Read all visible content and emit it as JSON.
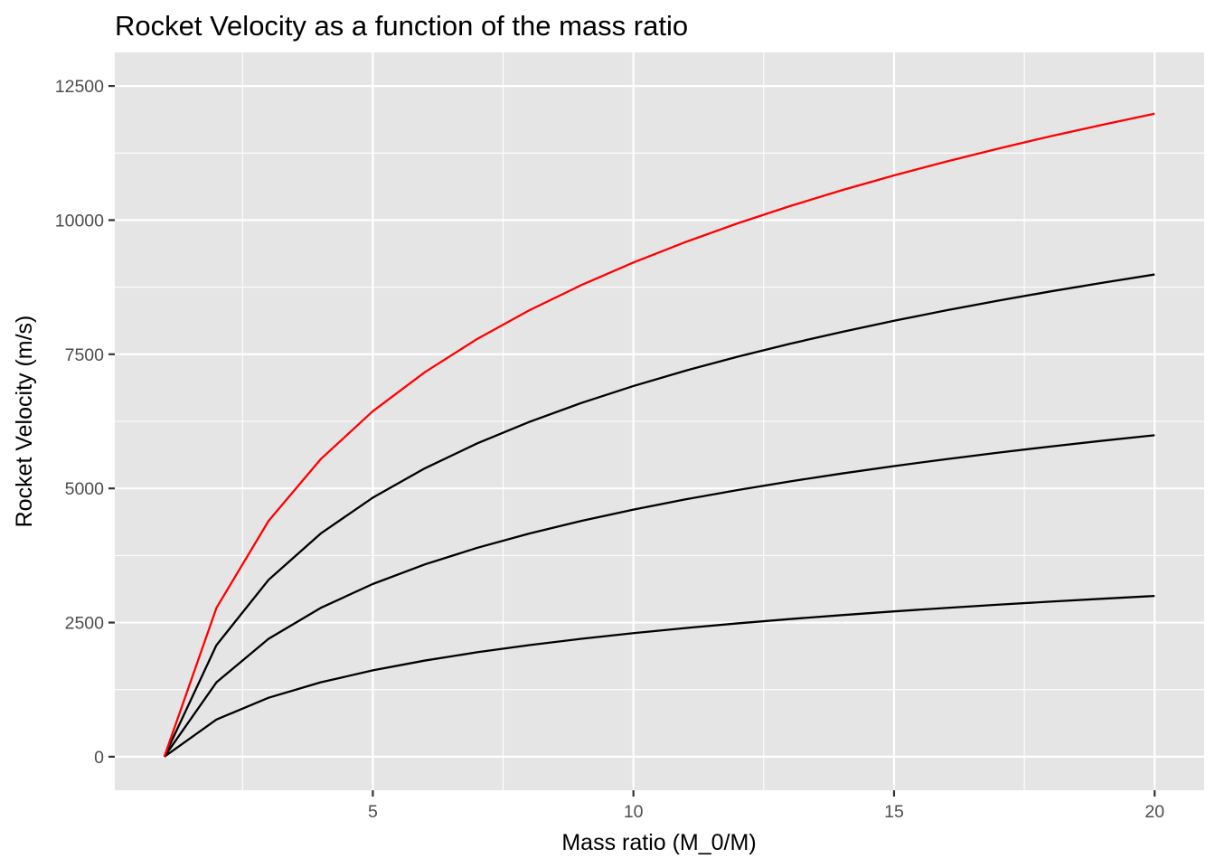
{
  "chart_data": {
    "type": "line",
    "title": "Rocket Velocity as a function of the mass ratio",
    "xlabel": "Mass ratio (M_0/M)",
    "ylabel": "Rocket Velocity (m/s)",
    "xlim": [
      0.05,
      20.95
    ],
    "ylim": [
      -625,
      13125
    ],
    "x_ticks": [
      5,
      10,
      15,
      20
    ],
    "x_tick_labels": [
      "5",
      "10",
      "15",
      "20"
    ],
    "y_ticks": [
      0,
      2500,
      5000,
      7500,
      10000,
      12500
    ],
    "y_tick_labels": [
      "0",
      "2500",
      "5000",
      "7500",
      "10000",
      "12500"
    ],
    "x_minor_ticks": [
      2.5,
      7.5,
      12.5,
      17.5
    ],
    "y_minor_ticks": [
      1250,
      3750,
      6250,
      8750,
      11250
    ],
    "grid": true,
    "legend": "none",
    "x": [
      1,
      2,
      3,
      4,
      5,
      6,
      7,
      8,
      9,
      10,
      11,
      12,
      13,
      14,
      15,
      16,
      17,
      18,
      19,
      20
    ],
    "series": [
      {
        "color": "#000000",
        "values": [
          0,
          693,
          1099,
          1386,
          1609,
          1792,
          1946,
          2079,
          2197,
          2303,
          2398,
          2485,
          2565,
          2639,
          2708,
          2773,
          2833,
          2890,
          2944,
          2996
        ]
      },
      {
        "color": "#000000",
        "values": [
          0,
          1386,
          2197,
          2773,
          3219,
          3584,
          3892,
          4159,
          4394,
          4605,
          4796,
          4970,
          5130,
          5278,
          5416,
          5545,
          5666,
          5781,
          5889,
          5991
        ]
      },
      {
        "color": "#000000",
        "values": [
          0,
          2079,
          3296,
          4159,
          4828,
          5375,
          5838,
          6238,
          6592,
          6908,
          7194,
          7455,
          7695,
          7917,
          8124,
          8318,
          8500,
          8671,
          8833,
          8987
        ]
      },
      {
        "color": "#ff0000",
        "values": [
          0,
          2773,
          4394,
          5545,
          6438,
          7167,
          7784,
          8318,
          8789,
          9210,
          9592,
          9940,
          10260,
          10557,
          10833,
          11090,
          11333,
          11562,
          11778,
          11983
        ]
      }
    ]
  },
  "colors": {
    "panel_background": "#e5e5e5",
    "grid": "#ffffff",
    "axis_text": "#4d4d4d",
    "tick_mark": "#333333"
  }
}
